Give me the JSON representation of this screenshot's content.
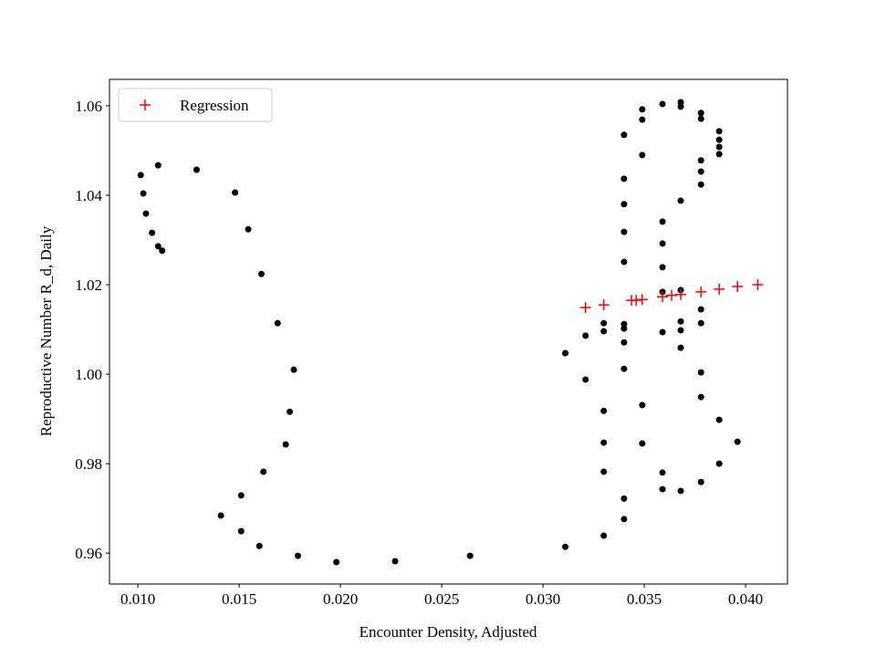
{
  "chart_data": {
    "type": "scatter",
    "x_label": "Encounter Density, Adjusted",
    "y_label": "Reproductive Number R_d, Daily",
    "xlim": [
      0.0086,
      0.04207
    ],
    "ylim": [
      0.9531,
      1.0659
    ],
    "xticks": [
      {
        "value": 0.01,
        "label": "0.010"
      },
      0.015,
      {
        "value": 0.02,
        "label": "0.020"
      },
      0.025,
      {
        "value": 0.03,
        "label": "0.030"
      },
      0.035,
      {
        "value": 0.04,
        "label": "0.040"
      }
    ],
    "yticks": [
      0.96,
      0.98,
      {
        "value": 1,
        "label": "1.00"
      },
      1.02,
      1.04,
      1.06
    ],
    "legend": "upper left",
    "series": [
      {
        "color": "#000000",
        "marker": "circle",
        "x": [
          0.01014,
          0.01027,
          0.0104,
          0.0107,
          0.011,
          0.0112,
          0.011,
          0.0129,
          0.0148,
          0.01545,
          0.0161,
          0.0169,
          0.0177,
          0.0175,
          0.0173,
          0.0162,
          0.0151,
          0.0141,
          0.0151,
          0.016,
          0.0179,
          0.0198,
          0.0227,
          0.0264,
          0.0311,
          0.0311,
          0.0321,
          0.0321,
          0.033,
          0.033,
          0.033,
          0.033,
          0.033,
          0.033,
          0.034,
          0.034,
          0.034,
          0.034,
          0.034,
          0.034,
          0.034,
          0.034,
          0.034,
          0.034,
          0.034,
          0.0349,
          0.0349,
          0.0349,
          0.0349,
          0.0349,
          0.0359,
          0.0359,
          0.0359,
          0.0359,
          0.0359,
          0.0359,
          0.0359,
          0.0359,
          0.0368,
          0.0368,
          0.0368,
          0.0368,
          0.0368,
          0.0368,
          0.0368,
          0.0368,
          0.0378,
          0.0378,
          0.0378,
          0.0378,
          0.0378,
          0.0378,
          0.0378,
          0.0378,
          0.0378,
          0.0378,
          0.0387,
          0.0387,
          0.0387,
          0.0387,
          0.0387,
          0.0387,
          0.0396
        ],
        "values": [
          1.0445,
          1.0404,
          1.0359,
          1.0316,
          1.0286,
          1.0276,
          1.0467,
          1.0457,
          1.0406,
          1.0324,
          1.0224,
          1.0114,
          1.001,
          0.9916,
          0.9843,
          0.9782,
          0.9729,
          0.9684,
          0.9649,
          0.9616,
          0.9594,
          0.958,
          0.9582,
          0.9594,
          0.9614,
          1.0047,
          1.0086,
          0.9988,
          1.0114,
          1.0096,
          0.9918,
          0.9847,
          0.9782,
          0.9639,
          1.0535,
          1.0437,
          1.038,
          1.0318,
          1.0251,
          1.0112,
          1.0102,
          1.0071,
          1.0012,
          0.9722,
          0.9676,
          1.0592,
          1.0569,
          1.049,
          0.9931,
          0.9845,
          1.0604,
          1.0341,
          1.0292,
          1.0239,
          1.0184,
          1.0094,
          0.978,
          0.9743,
          1.0608,
          1.0598,
          1.0388,
          1.0188,
          1.0118,
          1.0098,
          1.0059,
          0.9739,
          1.0584,
          1.0571,
          1.0478,
          1.0453,
          1.0424,
          1.0145,
          1.0114,
          1.0004,
          0.9949,
          0.9759,
          1.0543,
          1.0524,
          1.0508,
          1.0492,
          0.9898,
          0.98,
          0.9849
        ]
      },
      {
        "name": "Regression",
        "color": "#ff0000",
        "marker": "plus",
        "x": [
          0.0321,
          0.033,
          0.03437,
          0.0346,
          0.0349,
          0.0359,
          0.03635,
          0.0368,
          0.0378,
          0.0387,
          0.0396,
          0.0406
        ],
        "values": [
          1.0149,
          1.0155,
          1.0165,
          1.0165,
          1.0167,
          1.0173,
          1.0176,
          1.0178,
          1.0184,
          1.019,
          1.0196,
          1.02
        ]
      }
    ]
  }
}
